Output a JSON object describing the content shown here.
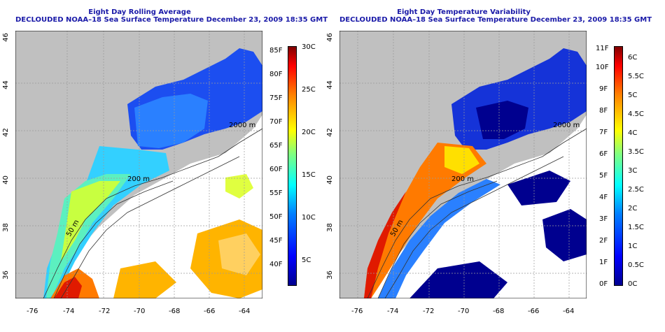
{
  "left_panel": {
    "title_line1": "Eight Day Rolling Average",
    "title_line2": "DECLOUDED NOAA–18 Sea Surface Temperature December 23, 2009 18:35 GMT",
    "x_ticks": [
      "-76",
      "-74",
      "-72",
      "-70",
      "-68",
      "-66",
      "-64"
    ],
    "y_ticks": [
      "36",
      "38",
      "40",
      "42",
      "44",
      "46"
    ],
    "contours": [
      "2000 m",
      "200 m",
      "50 m"
    ],
    "colorbar_f": [
      "40F",
      "45F",
      "50F",
      "55F",
      "60F",
      "65F",
      "70F",
      "75F",
      "80F",
      "85F"
    ],
    "colorbar_c": [
      "5C",
      "10C",
      "15C",
      "20C",
      "25C",
      "30C"
    ]
  },
  "right_panel": {
    "title_line1": "Eight Day Temperature Variability",
    "title_line2": "DECLOUDED NOAA–18 Sea Surface Temperature December 23, 2009 18:35 GMT",
    "x_ticks": [
      "-76",
      "-74",
      "-72",
      "-70",
      "-68",
      "-66",
      "-64"
    ],
    "y_ticks": [
      "36",
      "38",
      "40",
      "42",
      "44",
      "46"
    ],
    "contours": [
      "2000 m",
      "200 m",
      "50 m"
    ],
    "colorbar_f": [
      "0F",
      "1F",
      "2F",
      "3F",
      "4F",
      "5F",
      "6F",
      "7F",
      "8F",
      "9F",
      "10F",
      "11F"
    ],
    "colorbar_c": [
      "0C",
      "0.5C",
      "1C",
      "1.5C",
      "2C",
      "2.5C",
      "3C",
      "3.5C",
      "4C",
      "4.5C",
      "5C",
      "5.5C",
      "6C"
    ]
  },
  "colors": {
    "land": "#c0c0c0",
    "water_no_data": "#ffffff",
    "title": "#1a1aa8",
    "jet": [
      "#00008f",
      "#0000ff",
      "#0080ff",
      "#00ffff",
      "#80ff80",
      "#ffff00",
      "#ff8000",
      "#ff0000",
      "#800000"
    ]
  }
}
